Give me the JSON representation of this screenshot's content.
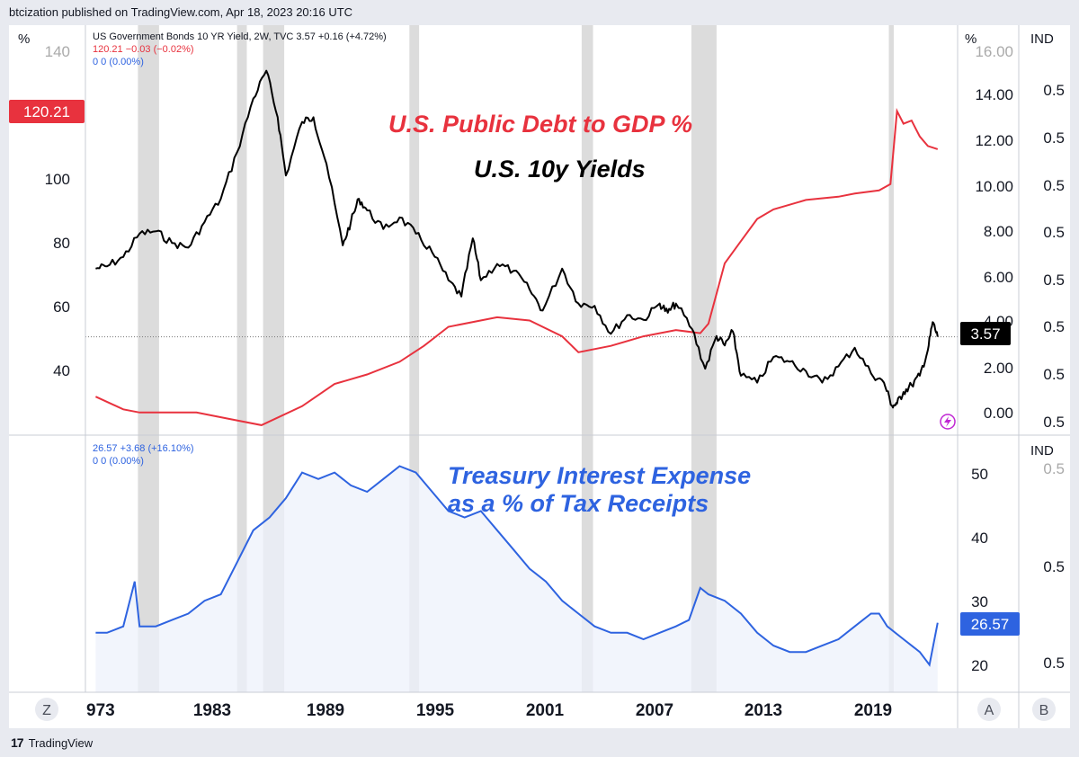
{
  "header": {
    "published_by": "btcization published on TradingView.com, Apr 18, 2023 20:16 UTC"
  },
  "footer": {
    "brand": "TradingView",
    "logo_glyph": "17"
  },
  "colors": {
    "yield": "#000000",
    "debt": "#e8323e",
    "interest": "#2e63e0",
    "interest_fill": "#eef1fb",
    "recession": "#dcdcdc",
    "price_label_bg": "#000000"
  },
  "top_pane": {
    "left_unit": "%",
    "right_unit": "%",
    "ind_label": "IND",
    "legend": {
      "line1": "US Government Bonds 10 YR Yield, 2W, TVC  3.57  +0.16 (+4.72%)",
      "line2": "120.21  −0.03 (−0.02%)",
      "line3": "0  0 (0.00%)"
    },
    "annotations": {
      "debt_title": "U.S. Public Debt to GDP %",
      "yield_title": "U.S. 10y Yields"
    },
    "left_ticks": [
      "140",
      "100",
      "80",
      "60",
      "40"
    ],
    "right_ticks": [
      "16.00",
      "14.00",
      "12.00",
      "10.00",
      "8.00",
      "6.00",
      "4.00",
      "2.00",
      "0.00"
    ],
    "ind_ticks": [
      "0.5",
      "0.5",
      "0.5",
      "0.5",
      "0.5",
      "0.5",
      "0.5",
      "0.5"
    ],
    "debt_price_label": "120.21",
    "yield_price_label": "3.57"
  },
  "bottom_pane": {
    "ind_label": "IND",
    "legend": {
      "line1": "26.57  +3.68 (+16.10%)",
      "line2": "0  0 (0.00%)"
    },
    "annotation_line1": "Treasury Interest Expense",
    "annotation_line2": "as a % of Tax Receipts",
    "right_ticks": [
      "50",
      "40",
      "30",
      "20"
    ],
    "ind_ticks": [
      "0.5",
      "0.5",
      "0.5"
    ],
    "price_label": "26.57"
  },
  "x_axis": {
    "labels": [
      "973",
      "1983",
      "1989",
      "1995",
      "2001",
      "2007",
      "2013",
      "2019"
    ],
    "buttons": {
      "zoom": "Z",
      "auto": "A",
      "log": "B"
    }
  },
  "chart_data": [
    {
      "type": "line",
      "title": "U.S. Public Debt to GDP %",
      "series": [
        {
          "name": "",
          "x": [
            1971.3,
            1973,
            1974,
            1976,
            1977.5,
            1979.5,
            1981.5,
            1984,
            1986,
            1988,
            1990,
            1991.5,
            1993,
            1996,
            1998,
            2000,
            2001,
            2003,
            2005,
            2007,
            2008.5,
            2009,
            2010,
            2011,
            2012,
            2013,
            2015,
            2017,
            2018,
            2019.5,
            2020.2,
            2020.6,
            2021,
            2021.5,
            2022,
            2022.5,
            2023.1
          ],
          "y": [
            42,
            38,
            37,
            37,
            37,
            35,
            33,
            39,
            46,
            49,
            53,
            58,
            64,
            67,
            66,
            61,
            56,
            58,
            61,
            63,
            62,
            65,
            84,
            91,
            98,
            101,
            104,
            105,
            106,
            107,
            109,
            132,
            128,
            129,
            124,
            121,
            120
          ]
        }
      ],
      "ylim": [
        31,
        150
      ]
    },
    {
      "type": "line",
      "title": "U.S. 10y Yields",
      "series": [
        {
          "name": "US Government Bonds 10 YR Yield, 2W, TVC",
          "x": [
            1971.3,
            1972,
            1973,
            1974,
            1975,
            1976,
            1977,
            1978,
            1979,
            1980,
            1981,
            1981.8,
            1982.5,
            1983,
            1984,
            1984.7,
            1985.5,
            1986.5,
            1987,
            1987.5,
            1988,
            1989,
            1990,
            1991,
            1992,
            1993,
            1993.8,
            1994.5,
            1995,
            1996,
            1997,
            1998,
            1998.8,
            2000,
            2001,
            2002,
            2003,
            2004,
            2005,
            2006,
            2006.5,
            2007,
            2008,
            2008.8,
            2009.5,
            2010,
            2010.5,
            2011,
            2012,
            2013,
            2014,
            2015,
            2016,
            2017,
            2018,
            2019,
            2019.8,
            2020.3,
            2020.6,
            2021,
            2021.5,
            2022,
            2022.5,
            2022.8,
            2023.1
          ],
          "y": [
            6.5,
            6.6,
            7.0,
            8.0,
            8.1,
            7.6,
            7.4,
            8.5,
            9.5,
            11.5,
            13.8,
            15.0,
            13.0,
            10.5,
            12.8,
            13.0,
            11.0,
            7.5,
            8.5,
            9.5,
            9.0,
            8.2,
            8.7,
            8.0,
            7.2,
            6.0,
            5.3,
            7.8,
            6.0,
            6.7,
            6.4,
            5.6,
            4.7,
            6.5,
            5.0,
            4.9,
            3.7,
            4.5,
            4.3,
            5.0,
            4.6,
            5.0,
            3.9,
            2.2,
            3.6,
            3.2,
            3.8,
            1.9,
            1.6,
            2.7,
            2.5,
            2.1,
            1.6,
            2.3,
            3.1,
            2.0,
            1.6,
            0.6,
            0.7,
            1.2,
            1.5,
            1.9,
            3.0,
            4.2,
            3.57
          ]
        }
      ],
      "ylim": [
        -0.5,
        16.3
      ]
    },
    {
      "type": "area",
      "title": "Treasury Interest Expense as a % of Tax Receipts",
      "series": [
        {
          "name": "",
          "x": [
            1971.3,
            1972,
            1973,
            1973.7,
            1974,
            1975,
            1976,
            1977,
            1978,
            1979,
            1980,
            1981,
            1982,
            1983,
            1984,
            1985,
            1986,
            1987,
            1988,
            1989,
            1990,
            1991,
            1992,
            1993,
            1994,
            1995,
            1996,
            1997,
            1998,
            1999,
            2000,
            2001,
            2002,
            2003,
            2004,
            2005,
            2006,
            2007,
            2007.8,
            2008.5,
            2009,
            2010,
            2011,
            2012,
            2013,
            2014,
            2015,
            2016,
            2017,
            2018,
            2019,
            2019.5,
            2020,
            2021,
            2022,
            2022.6,
            2023.1
          ],
          "y": [
            25,
            25,
            26,
            33,
            26,
            26,
            27,
            28,
            30,
            31,
            36,
            41,
            43,
            46,
            50,
            49,
            50,
            48,
            47,
            49,
            51,
            50,
            47,
            44,
            43,
            44,
            41,
            38,
            35,
            33,
            30,
            28,
            26,
            25,
            25,
            24,
            25,
            26,
            27,
            32,
            31,
            30,
            28,
            25,
            23,
            22,
            22,
            23,
            24,
            26,
            28,
            28,
            26,
            24,
            22,
            20,
            26.57
          ]
        }
      ],
      "ylim": [
        16,
        55
      ]
    }
  ],
  "recessions": [
    [
      1973.9,
      1975.2
    ],
    [
      1980.0,
      1980.6
    ],
    [
      1981.6,
      1982.9
    ],
    [
      1990.6,
      1991.2
    ],
    [
      2001.2,
      2001.9
    ],
    [
      2007.95,
      2009.5
    ],
    [
      2020.1,
      2020.4
    ]
  ]
}
